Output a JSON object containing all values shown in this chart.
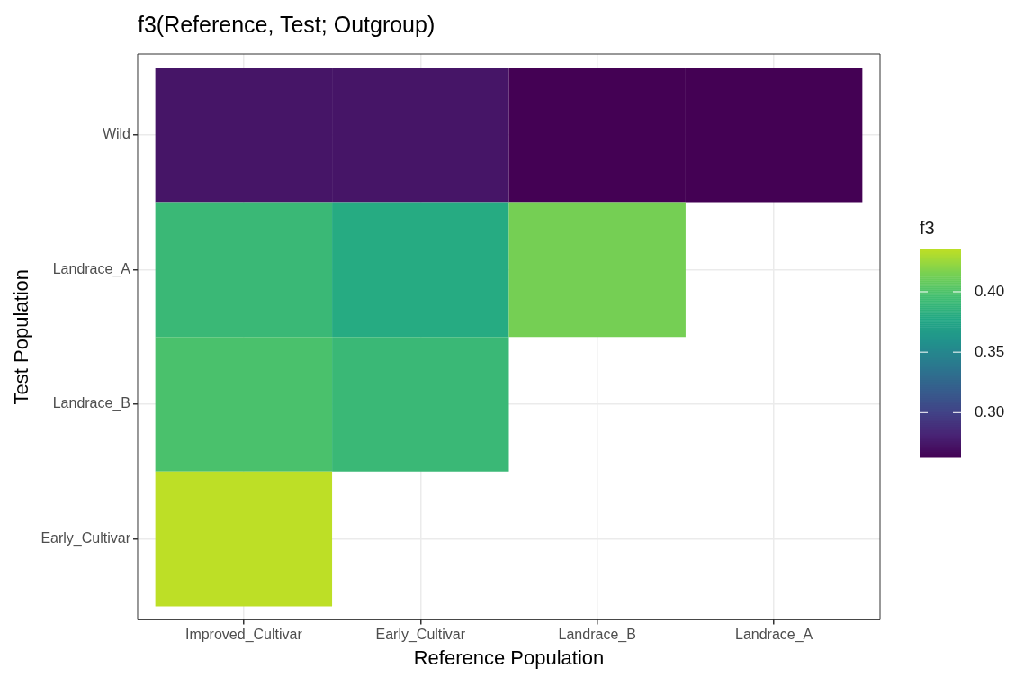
{
  "chart_data": {
    "type": "heatmap",
    "title": "f3(Reference, Test; Outgroup)",
    "xlabel": "Reference Population",
    "ylabel": "Test Population",
    "clabel": "f3",
    "categories": [
      "Improved_Cultivar",
      "Early_Cultivar",
      "Landrace_B",
      "Landrace_A"
    ],
    "y_categories": [
      "Wild",
      "Landrace_A",
      "Landrace_B",
      "Early_Cultivar"
    ],
    "cells": [
      [
        0.274,
        0.274,
        0.263,
        0.263
      ],
      [
        0.391,
        0.38,
        0.414,
        null
      ],
      [
        0.399,
        0.391,
        null,
        null
      ],
      [
        0.435,
        null,
        null,
        null
      ]
    ],
    "clim": [
      0.263,
      0.435
    ],
    "cticks": [
      {
        "value": 0.3,
        "label": "0.30"
      },
      {
        "value": 0.35,
        "label": "0.35"
      },
      {
        "value": 0.4,
        "label": "0.40"
      }
    ],
    "grid": true
  }
}
